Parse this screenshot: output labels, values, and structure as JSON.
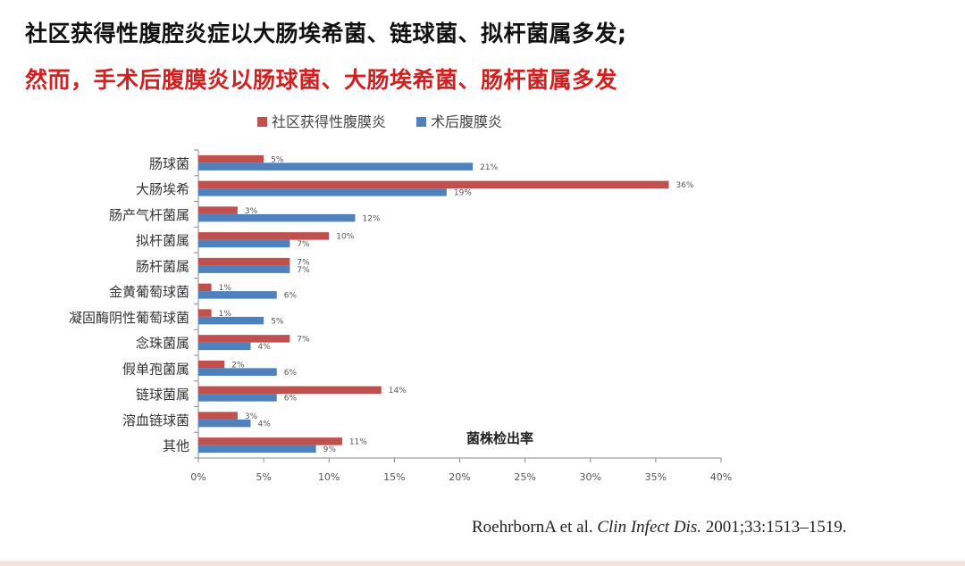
{
  "headline": {
    "line1": "社区获得性腹腔炎症以大肠埃希菌、链球菌、拟杆菌属多发;",
    "line2": "然而，手术后腹膜炎以肠球菌、大肠埃希菌、肠杆菌属多发"
  },
  "colors": {
    "community": "#c0504d",
    "postop": "#4f81bd",
    "headline_red": "#d21f1f"
  },
  "chart_data": {
    "type": "bar",
    "orientation": "horizontal",
    "categories": [
      "肠球菌",
      "大肠埃希",
      "肠产气杆菌属",
      "拟杆菌属",
      "肠杆菌属",
      "金黄葡萄球菌",
      "凝固酶阴性葡萄球菌",
      "念珠菌属",
      "假单孢菌属",
      "链球菌属",
      "溶血链球菌",
      "其他"
    ],
    "series": [
      {
        "name": "社区获得性腹膜炎",
        "values": [
          5,
          36,
          3,
          10,
          7,
          1,
          1,
          7,
          2,
          14,
          3,
          11
        ]
      },
      {
        "name": "术后腹膜炎",
        "values": [
          21,
          19,
          12,
          7,
          7,
          6,
          5,
          4,
          6,
          6,
          4,
          9
        ]
      }
    ],
    "xlim": [
      0,
      40
    ],
    "xticks": [
      0,
      5,
      10,
      15,
      20,
      25,
      30,
      35,
      40
    ],
    "value_suffix": "%",
    "annotation": "菌株检出率",
    "legend_position": "top",
    "grid": false
  },
  "citation": {
    "authors": "RoehrbornA et al.",
    "journal": "Clin Infect Dis.",
    "details": "2001;33:1513–1519."
  }
}
